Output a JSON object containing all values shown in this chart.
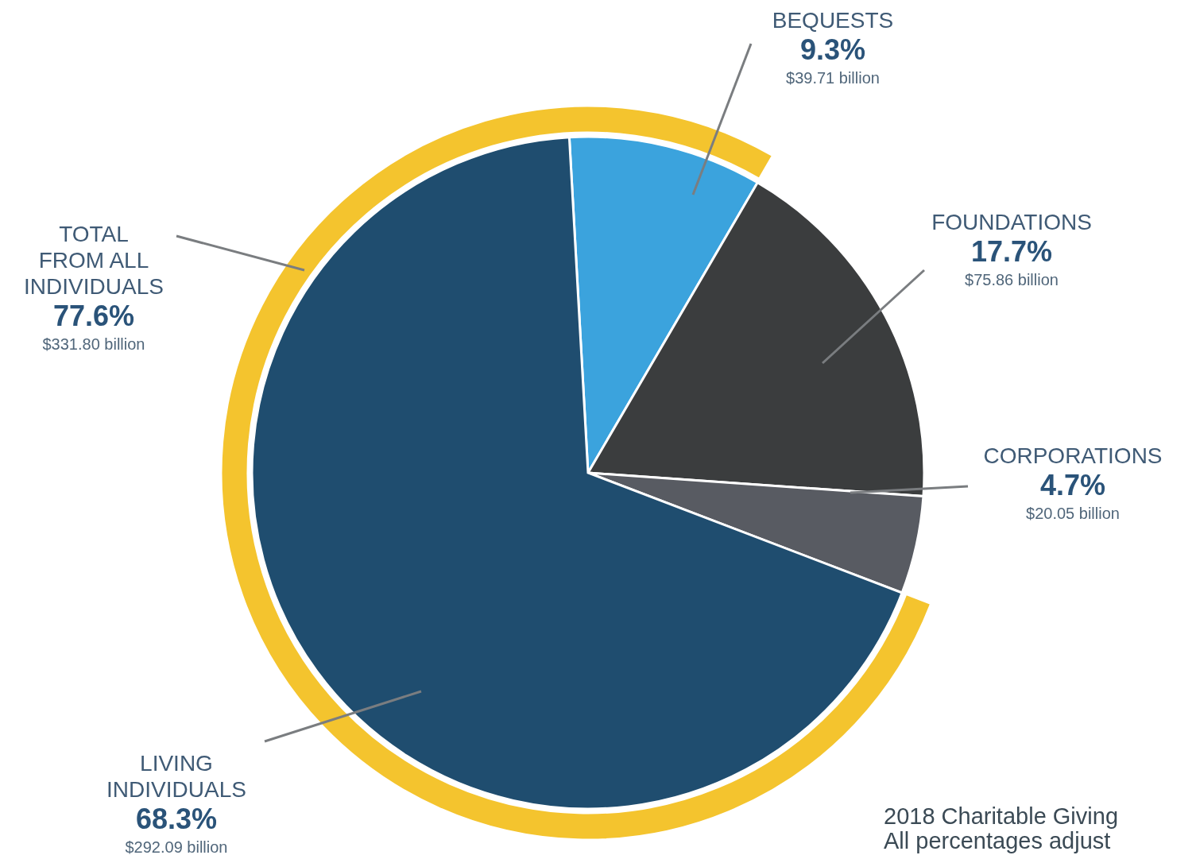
{
  "chart_data": [
    {
      "type": "pie",
      "categories": [
        "BEQUESTS",
        "FOUNDATIONS",
        "CORPORATIONS",
        "LIVING INDIVIDUALS"
      ],
      "values": [
        9.3,
        17.7,
        4.7,
        68.3
      ],
      "colors": [
        "#3ba3dd",
        "#3b3d3e",
        "#585b62",
        "#1f4d6f"
      ],
      "value_labels": [
        "9.3%",
        "17.7%",
        "4.7%",
        "68.3%"
      ],
      "annotations": [
        {
          "text": "$39.71 billion",
          "x": "BEQUESTS"
        },
        {
          "text": "$75.86 billion",
          "x": "FOUNDATIONS"
        },
        {
          "text": "$20.05 billion",
          "x": "CORPORATIONS"
        },
        {
          "text": "$292.09 billion",
          "x": "LIVING INDIVIDUALS"
        },
        "2018 Charitable Giving",
        "All percentages adjust"
      ]
    },
    {
      "type": "pie",
      "categories": [
        "TOTAL FROM ALL INDIVIDUALS"
      ],
      "values": [
        77.6
      ],
      "colors": [
        "#f4c42e"
      ],
      "value_labels": [
        "77.6%"
      ],
      "annotations": [
        {
          "text": "$331.80 billion",
          "x": "TOTAL FROM ALL INDIVIDUALS"
        }
      ]
    }
  ]
}
